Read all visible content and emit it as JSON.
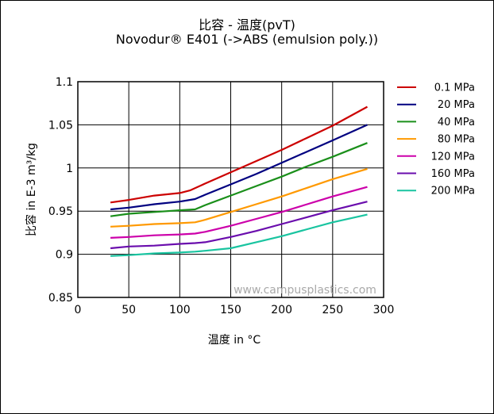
{
  "chart_data": {
    "type": "line",
    "title": "比容 - 温度(pvT)",
    "subtitle": "Novodur® E401  (->ABS (emulsion poly.))",
    "xlabel": "温度 in °C",
    "ylabel": "比容 in E-3 m³/kg",
    "xlim": [
      0,
      300
    ],
    "ylim": [
      0.85,
      1.1
    ],
    "xticks": [
      "0",
      "50",
      "100",
      "150",
      "200",
      "250",
      "300"
    ],
    "yticks": [
      "0.85",
      "0.9",
      "0.95",
      "1",
      "1.05",
      "1.1"
    ],
    "grid": true,
    "legend_position": "right",
    "watermark": "www.campusplastics.com",
    "series": [
      {
        "name": "0.1 MPa",
        "color": "#cc0000",
        "x": [
          32,
          50,
          75,
          100,
          110,
          125,
          150,
          175,
          200,
          225,
          250,
          284
        ],
        "y": [
          0.96,
          0.963,
          0.968,
          0.971,
          0.974,
          0.982,
          0.995,
          1.008,
          1.021,
          1.035,
          1.049,
          1.071
        ]
      },
      {
        "name": "20 MPa",
        "color": "#000080",
        "x": [
          32,
          50,
          75,
          100,
          115,
          125,
          150,
          175,
          200,
          225,
          250,
          284
        ],
        "y": [
          0.952,
          0.954,
          0.958,
          0.961,
          0.964,
          0.969,
          0.981,
          0.993,
          1.006,
          1.019,
          1.032,
          1.05
        ]
      },
      {
        "name": "40 MPa",
        "color": "#1a8f1a",
        "x": [
          32,
          50,
          75,
          100,
          115,
          125,
          150,
          175,
          200,
          225,
          250,
          284
        ],
        "y": [
          0.944,
          0.947,
          0.949,
          0.951,
          0.952,
          0.957,
          0.968,
          0.979,
          0.99,
          1.002,
          1.013,
          1.029
        ]
      },
      {
        "name": "80 MPa",
        "color": "#ff9900",
        "x": [
          32,
          50,
          75,
          100,
          115,
          125,
          150,
          175,
          200,
          225,
          250,
          284
        ],
        "y": [
          0.932,
          0.933,
          0.935,
          0.936,
          0.937,
          0.94,
          0.949,
          0.958,
          0.967,
          0.977,
          0.987,
          0.999
        ]
      },
      {
        "name": "120 MPa",
        "color": "#cc00aa",
        "x": [
          32,
          50,
          75,
          100,
          115,
          125,
          150,
          175,
          200,
          225,
          250,
          284
        ],
        "y": [
          0.919,
          0.92,
          0.922,
          0.923,
          0.924,
          0.926,
          0.933,
          0.941,
          0.949,
          0.958,
          0.967,
          0.978
        ]
      },
      {
        "name": "160 MPa",
        "color": "#6a0dad",
        "x": [
          32,
          50,
          75,
          100,
          115,
          125,
          150,
          175,
          200,
          225,
          250,
          284
        ],
        "y": [
          0.907,
          0.909,
          0.91,
          0.912,
          0.913,
          0.914,
          0.92,
          0.927,
          0.935,
          0.943,
          0.951,
          0.961
        ]
      },
      {
        "name": "200 MPa",
        "color": "#19c4a0",
        "x": [
          32,
          50,
          75,
          100,
          115,
          125,
          150,
          175,
          200,
          225,
          250,
          284
        ],
        "y": [
          0.898,
          0.899,
          0.901,
          0.902,
          0.903,
          0.904,
          0.907,
          0.914,
          0.921,
          0.929,
          0.937,
          0.946
        ]
      }
    ]
  }
}
